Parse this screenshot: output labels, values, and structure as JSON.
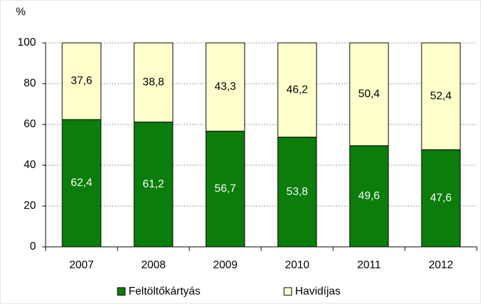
{
  "chart_data": {
    "type": "stacked_bar",
    "y_label": "%",
    "categories": [
      "2007",
      "2008",
      "2009",
      "2010",
      "2011",
      "2012"
    ],
    "series": [
      {
        "name": "Feltöltőkártyás",
        "color": "#0b7d0b",
        "values": [
          62.4,
          61.2,
          56.7,
          53.8,
          49.6,
          47.6
        ],
        "value_labels": [
          "62,4",
          "61,2",
          "56,7",
          "53,8",
          "49,6",
          "47,6"
        ]
      },
      {
        "name": "Havidíjas",
        "color": "#ffffcc",
        "values": [
          37.6,
          38.8,
          43.3,
          46.2,
          50.4,
          52.4
        ],
        "value_labels": [
          "37,6",
          "38,8",
          "43,3",
          "46,2",
          "50,4",
          "52,4"
        ]
      }
    ],
    "ylim": [
      0,
      100
    ],
    "yticks": [
      0,
      20,
      40,
      60,
      80,
      100
    ],
    "grid": true,
    "legend": "bottom"
  }
}
